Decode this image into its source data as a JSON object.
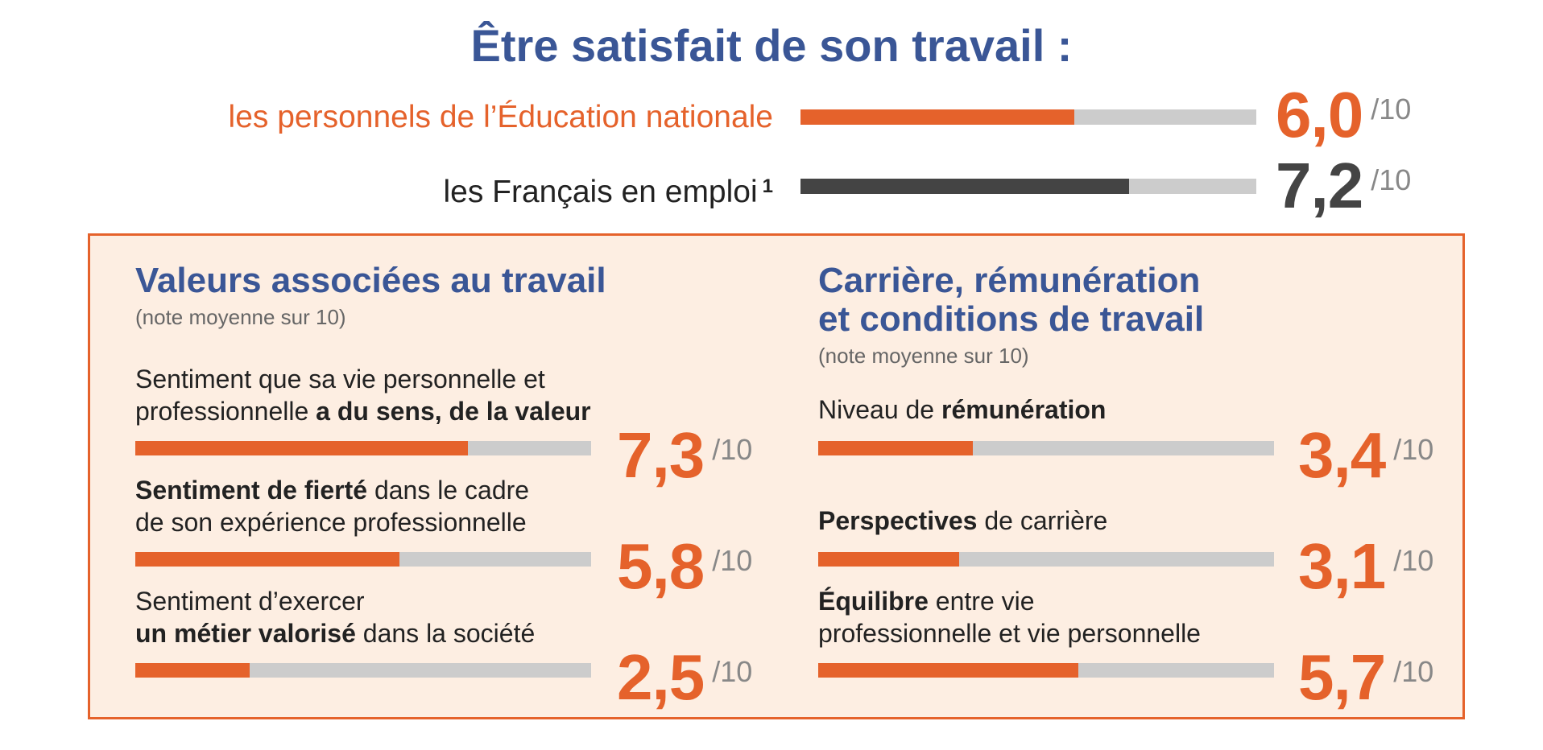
{
  "title": "Être satisfait de son travail :",
  "colors": {
    "orange": "#e5622b",
    "dark": "#444444",
    "track": "#cccccc",
    "blue": "#3a5696"
  },
  "chart_data": [
    {
      "type": "bar",
      "orientation": "horizontal",
      "title": "Être satisfait de son travail :",
      "scale_max": 10,
      "unit": "/10",
      "categories": [
        "les personnels de l’Éducation nationale",
        "les Français en emploi"
      ],
      "footnote_marker": "1",
      "values": [
        6.0,
        7.2
      ],
      "display_values": [
        "6,0",
        "7,2"
      ]
    },
    {
      "type": "bar",
      "orientation": "horizontal",
      "title": "Valeurs associées au travail",
      "subtitle": "(note moyenne sur 10)",
      "scale_max": 10,
      "unit": "/10",
      "categories": [
        "Sentiment que sa vie personnelle et professionnelle a du sens, de la valeur",
        "Sentiment de fierté dans le cadre de son expérience professionnelle",
        "Sentiment d’exercer un métier valorisé dans la société"
      ],
      "values": [
        7.3,
        5.8,
        2.5
      ],
      "display_values": [
        "7,3",
        "5,8",
        "2,5"
      ]
    },
    {
      "type": "bar",
      "orientation": "horizontal",
      "title": "Carrière, rémunération et conditions de travail",
      "subtitle": "(note moyenne sur 10)",
      "scale_max": 10,
      "unit": "/10",
      "categories": [
        "Niveau de rémunération",
        "Perspectives de carrière",
        "Équilibre entre vie professionnelle et vie personnelle"
      ],
      "values": [
        3.4,
        3.1,
        5.7
      ],
      "display_values": [
        "3,4",
        "3,1",
        "5,7"
      ]
    }
  ],
  "labels": {
    "top": [
      {
        "text": "les personnels de l’Éducation nationale"
      },
      {
        "text": "les Français en emploi",
        "sup": "1"
      }
    ],
    "left": [
      {
        "pre": "Sentiment que sa vie personnelle et",
        "pre2": "professionnelle ",
        "bold": "a du sens, de la valeur",
        "post": ""
      },
      {
        "pre": "",
        "pre2": "",
        "bold": "Sentiment de fierté",
        "post": " dans le cadre",
        "line2": "de son expérience professionnelle"
      },
      {
        "pre": "Sentiment d’exercer",
        "pre2": "",
        "bold": "un métier valorisé",
        "post": " dans la société"
      }
    ],
    "right": [
      {
        "pre": "Niveau de ",
        "bold": "rémunération",
        "post": ""
      },
      {
        "pre": "",
        "bold": "Perspectives",
        "post": " de carrière"
      },
      {
        "pre": "",
        "bold": "Équilibre",
        "post": " entre vie",
        "line2": "professionnelle et vie personnelle"
      }
    ]
  },
  "left_title": "Valeurs associées au travail",
  "left_note": "(note moyenne sur 10)",
  "right_title_line1": "Carrière, rémunération",
  "right_title_line2": "et conditions de travail",
  "right_note": "(note moyenne sur 10)"
}
